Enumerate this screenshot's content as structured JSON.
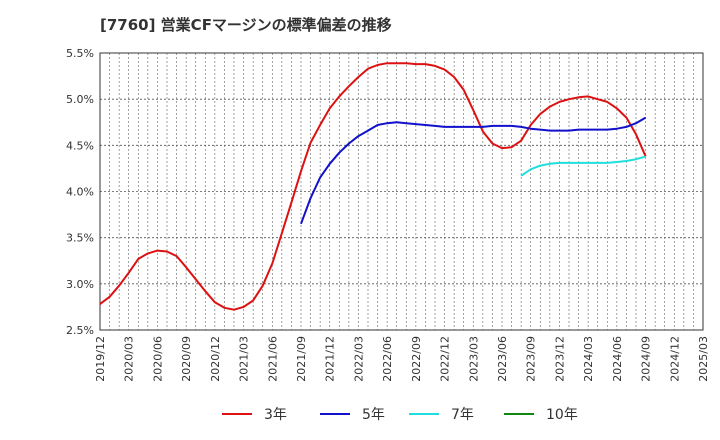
{
  "title": "[7760]  営業CFマージンの標準偏差の推移",
  "chart_data": {
    "type": "line",
    "title": "[7760]  営業CFマージンの標準偏差の推移",
    "xlabel": "",
    "ylabel": "",
    "x_ticks": [
      "2019/12",
      "2020/03",
      "2020/06",
      "2020/09",
      "2020/12",
      "2021/03",
      "2021/06",
      "2021/09",
      "2021/12",
      "2022/03",
      "2022/06",
      "2022/09",
      "2022/12",
      "2023/03",
      "2023/06",
      "2023/09",
      "2023/12",
      "2024/03",
      "2024/06",
      "2024/09",
      "2024/12",
      "2025/03"
    ],
    "y_ticks": [
      "2.5%",
      "3.0%",
      "3.5%",
      "4.0%",
      "4.5%",
      "5.0%",
      "5.5%"
    ],
    "ylim": [
      2.5,
      5.5
    ],
    "grid": true,
    "legend": "bottom",
    "series": [
      {
        "name": "3年",
        "color": "#dd1111",
        "x": [
          "2019/12",
          "2020/01",
          "2020/02",
          "2020/03",
          "2020/04",
          "2020/05",
          "2020/06",
          "2020/07",
          "2020/08",
          "2020/09",
          "2020/10",
          "2020/11",
          "2020/12",
          "2021/01",
          "2021/02",
          "2021/03",
          "2021/04",
          "2021/05",
          "2021/06",
          "2021/07",
          "2021/08",
          "2021/09",
          "2021/10",
          "2021/11",
          "2021/12",
          "2022/01",
          "2022/02",
          "2022/03",
          "2022/04",
          "2022/05",
          "2022/06",
          "2022/07",
          "2022/08",
          "2022/09",
          "2022/10",
          "2022/11",
          "2022/12",
          "2023/01",
          "2023/02",
          "2023/03",
          "2023/04",
          "2023/05",
          "2023/06",
          "2023/07",
          "2023/08",
          "2023/09",
          "2023/10",
          "2023/11",
          "2023/12",
          "2024/01",
          "2024/02",
          "2024/03",
          "2024/04",
          "2024/05",
          "2024/06",
          "2024/07",
          "2024/08",
          "2024/09"
        ],
        "values": [
          2.78,
          2.86,
          2.98,
          3.12,
          3.27,
          3.33,
          3.36,
          3.35,
          3.3,
          3.18,
          3.05,
          2.92,
          2.8,
          2.74,
          2.72,
          2.75,
          2.82,
          2.98,
          3.22,
          3.55,
          3.88,
          4.22,
          4.53,
          4.72,
          4.9,
          5.03,
          5.14,
          5.24,
          5.33,
          5.37,
          5.39,
          5.39,
          5.39,
          5.38,
          5.38,
          5.36,
          5.32,
          5.24,
          5.1,
          4.88,
          4.65,
          4.52,
          4.47,
          4.48,
          4.55,
          4.72,
          4.84,
          4.92,
          4.97,
          5.0,
          5.02,
          5.03,
          5.0,
          4.97,
          4.9,
          4.8,
          4.62,
          4.38
        ]
      },
      {
        "name": "5年",
        "color": "#1111cc",
        "x": [
          "2021/09",
          "2021/10",
          "2021/11",
          "2021/12",
          "2022/01",
          "2022/02",
          "2022/03",
          "2022/04",
          "2022/05",
          "2022/06",
          "2022/07",
          "2022/08",
          "2022/09",
          "2022/10",
          "2022/11",
          "2022/12",
          "2023/01",
          "2023/02",
          "2023/03",
          "2023/04",
          "2023/05",
          "2023/06",
          "2023/07",
          "2023/08",
          "2023/09",
          "2023/10",
          "2023/11",
          "2023/12",
          "2024/01",
          "2024/02",
          "2024/03",
          "2024/04",
          "2024/05",
          "2024/06",
          "2024/07",
          "2024/08",
          "2024/09"
        ],
        "values": [
          3.65,
          3.93,
          4.15,
          4.3,
          4.42,
          4.52,
          4.6,
          4.66,
          4.72,
          4.74,
          4.75,
          4.74,
          4.73,
          4.72,
          4.71,
          4.7,
          4.7,
          4.7,
          4.7,
          4.7,
          4.71,
          4.71,
          4.71,
          4.7,
          4.68,
          4.67,
          4.66,
          4.66,
          4.66,
          4.67,
          4.67,
          4.67,
          4.67,
          4.68,
          4.7,
          4.74,
          4.8
        ]
      },
      {
        "name": "7年",
        "color": "#22dddd",
        "x": [
          "2023/08",
          "2023/09",
          "2023/10",
          "2023/11",
          "2023/12",
          "2024/01",
          "2024/02",
          "2024/03",
          "2024/04",
          "2024/05",
          "2024/06",
          "2024/07",
          "2024/08",
          "2024/09"
        ],
        "values": [
          4.17,
          4.24,
          4.28,
          4.3,
          4.31,
          4.31,
          4.31,
          4.31,
          4.31,
          4.31,
          4.32,
          4.33,
          4.35,
          4.38
        ]
      },
      {
        "name": "10年",
        "color": "#118811",
        "x": [],
        "values": []
      }
    ]
  }
}
